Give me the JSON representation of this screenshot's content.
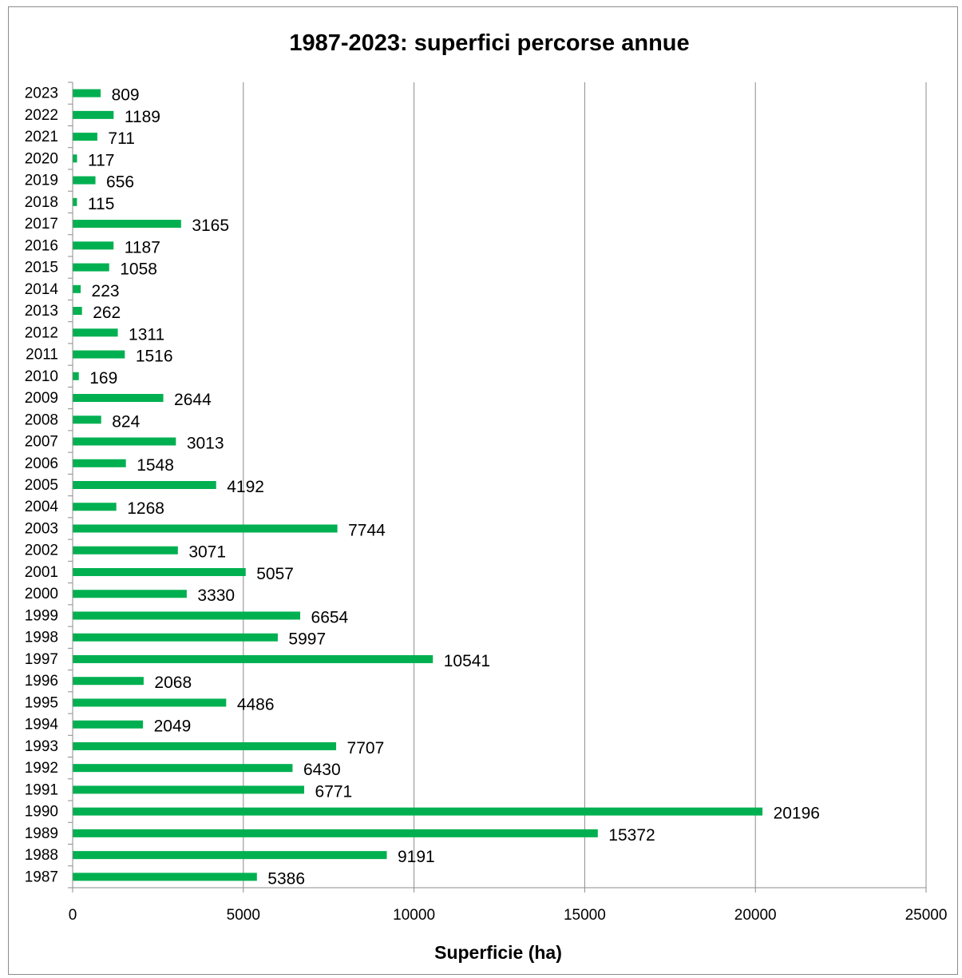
{
  "chart_data": {
    "type": "bar",
    "orientation": "horizontal",
    "title": "1987-2023: superfici percorse annue",
    "xlabel": "Superficie (ha)",
    "ylabel": "",
    "xlim": [
      0,
      25000
    ],
    "xticks": [
      0,
      5000,
      10000,
      15000,
      20000,
      25000
    ],
    "grid": "vertical",
    "legend": "none",
    "bar_color": "#00b050",
    "categories": [
      "1987",
      "1988",
      "1989",
      "1990",
      "1991",
      "1992",
      "1993",
      "1994",
      "1995",
      "1996",
      "1997",
      "1998",
      "1999",
      "2000",
      "2001",
      "2002",
      "2003",
      "2004",
      "2005",
      "2006",
      "2007",
      "2008",
      "2009",
      "2010",
      "2011",
      "2012",
      "2013",
      "2014",
      "2015",
      "2016",
      "2017",
      "2018",
      "2019",
      "2020",
      "2021",
      "2022",
      "2023"
    ],
    "values": [
      5386,
      9191,
      15372,
      20196,
      6771,
      6430,
      7707,
      2049,
      4486,
      2068,
      10541,
      5997,
      6654,
      3330,
      5057,
      3071,
      7744,
      1268,
      4192,
      1548,
      3013,
      824,
      2644,
      169,
      1516,
      1311,
      262,
      223,
      1058,
      1187,
      3165,
      115,
      656,
      117,
      711,
      1189,
      809
    ]
  }
}
